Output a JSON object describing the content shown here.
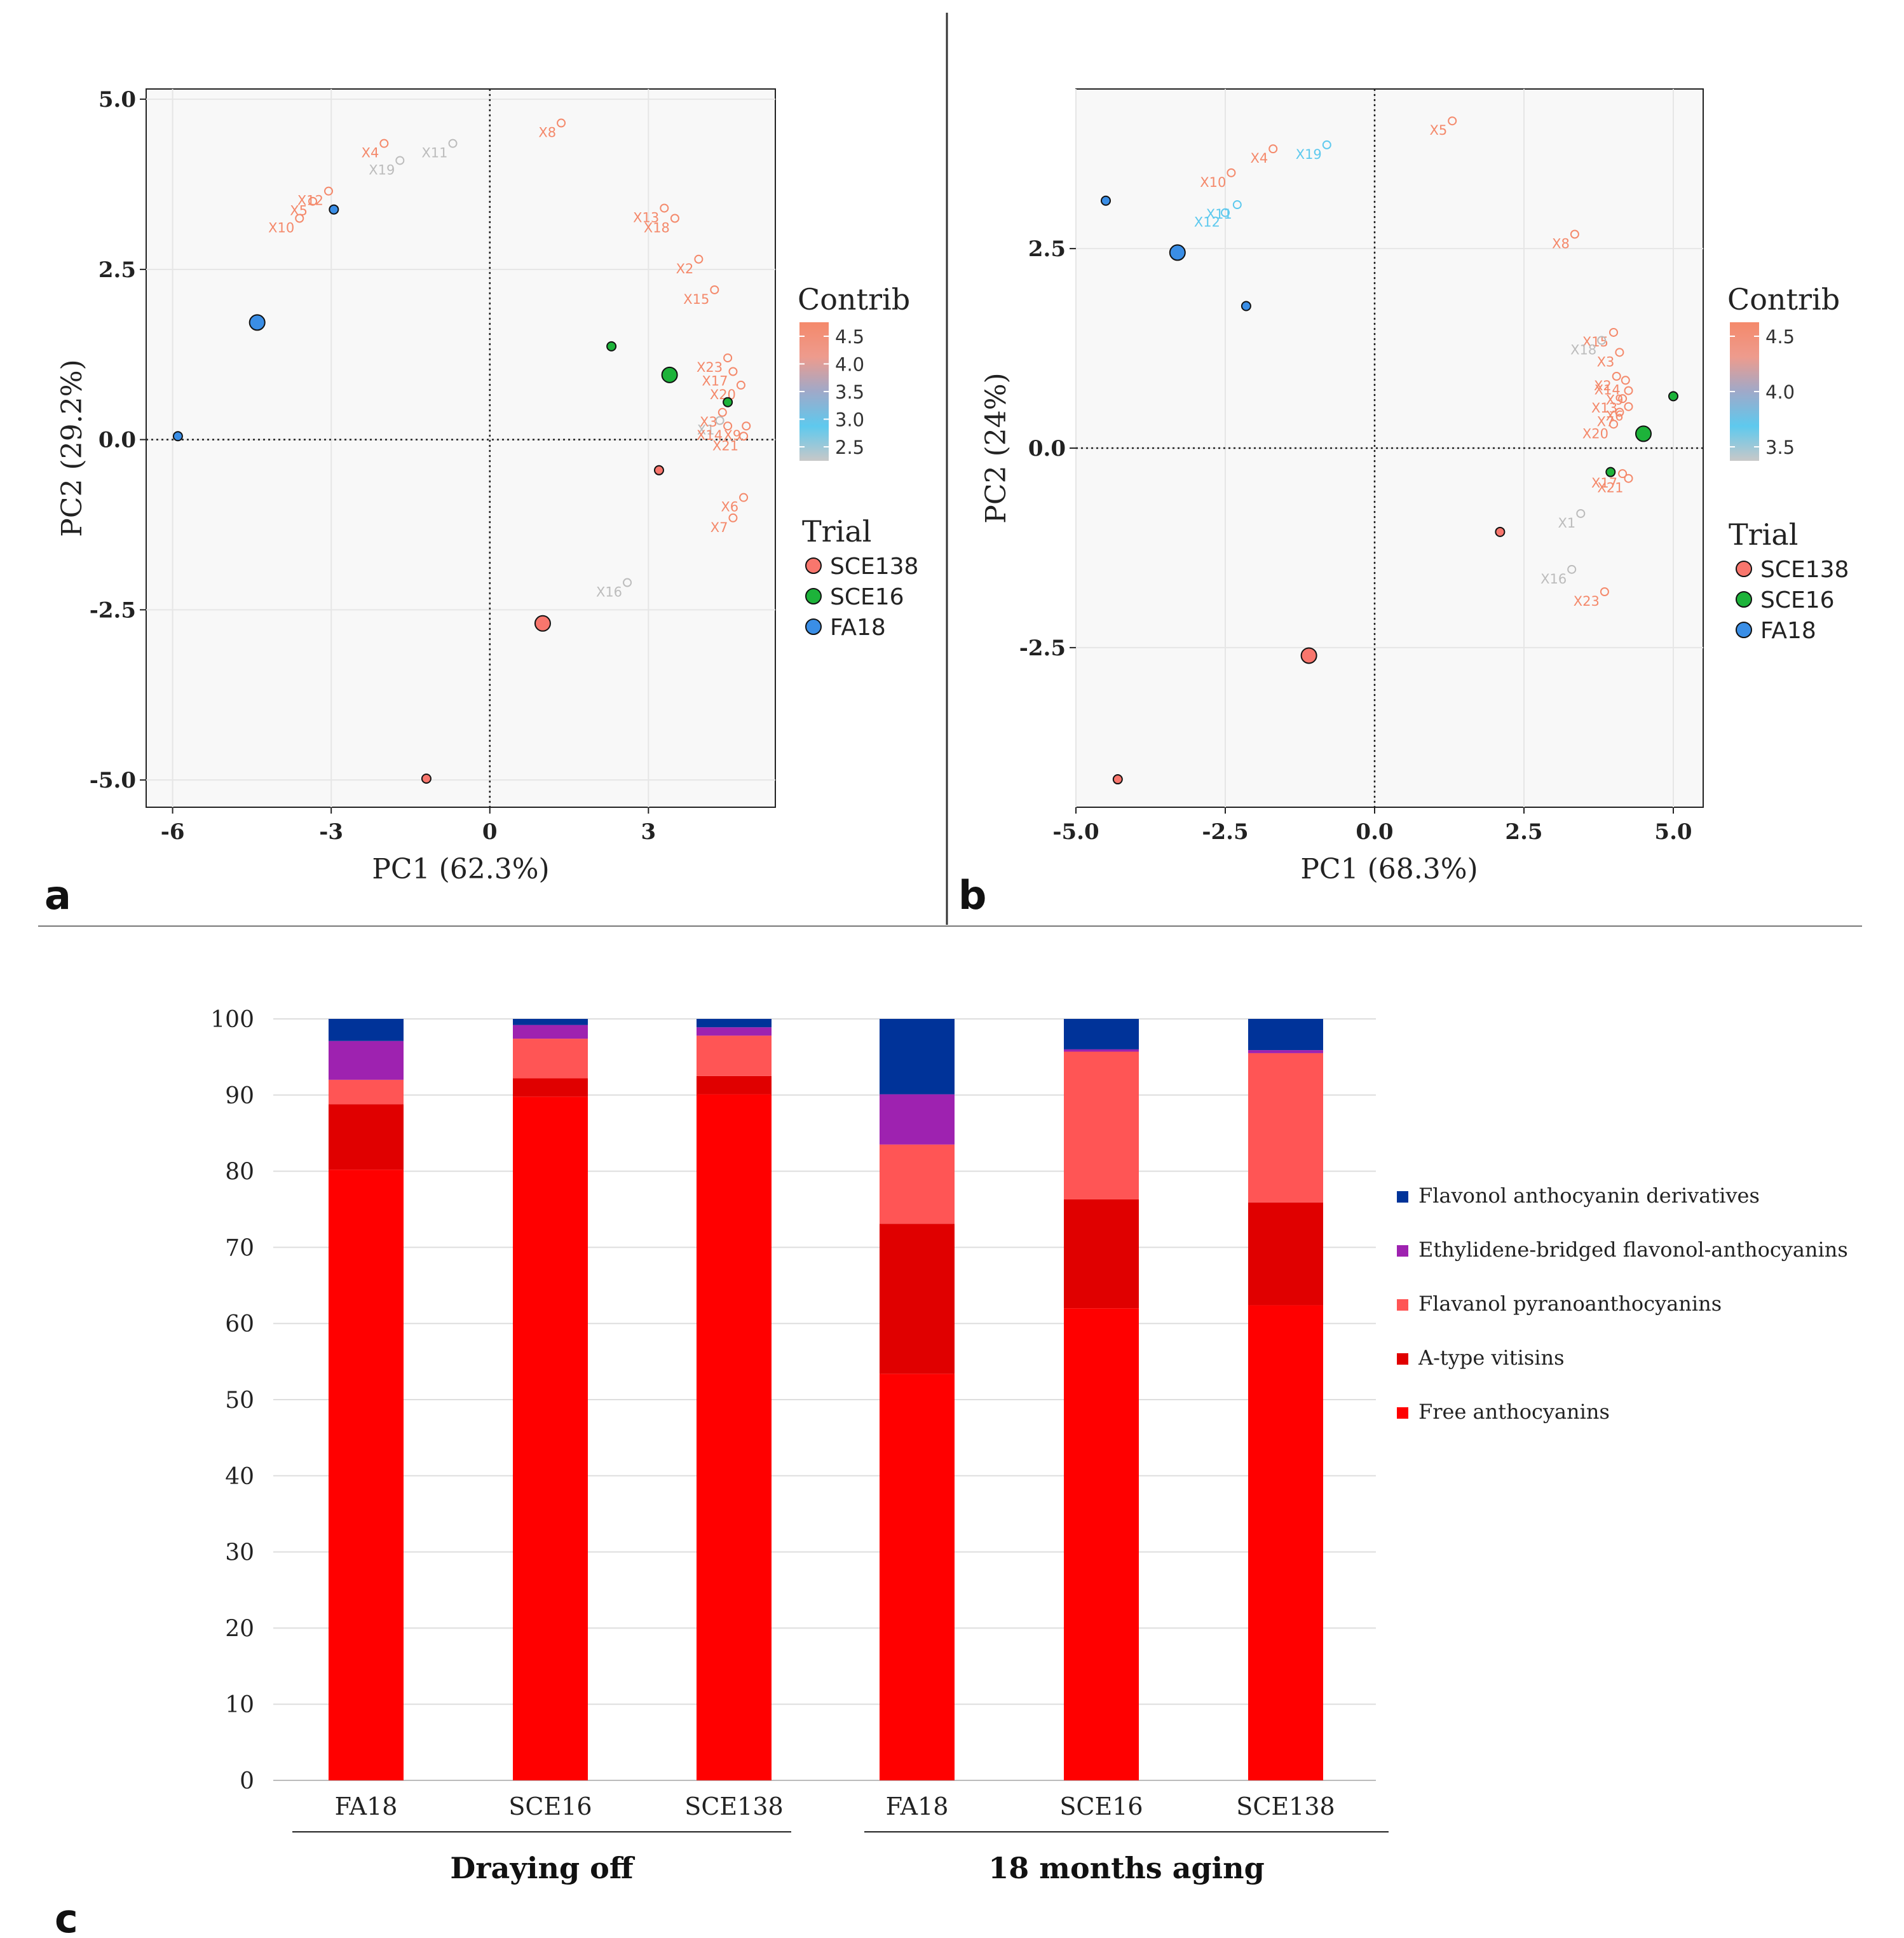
{
  "panels": {
    "a_label": "a",
    "b_label": "b",
    "c_label": "c"
  },
  "chart_data": [
    {
      "type": "scatter",
      "panel": "a",
      "xlabel": "PC1 (62.3%)",
      "ylabel": "PC2 (29.2%)",
      "xlim": [
        -6.5,
        5.4
      ],
      "ylim": [
        -5.4,
        5.15
      ],
      "xticks": [
        -6,
        -3,
        0,
        3
      ],
      "xtick_labels": [
        "-6",
        "-3",
        "0",
        "3"
      ],
      "yticks": [
        5,
        2.5,
        0,
        -2.5,
        -5
      ],
      "ytick_labels": [
        "5.0",
        "2.5",
        "0.0",
        "-2.5",
        "-5.0"
      ],
      "contrib_legend": {
        "title": "Contrib",
        "ticks": [
          "4.5",
          "4.0",
          "3.5",
          "3.0",
          "2.5"
        ],
        "colors": [
          "#f4896b",
          "#ee9b8d",
          "#9fa9c9",
          "#5ec9ee",
          "#c8c8c8"
        ]
      },
      "trial_legend": {
        "title": "Trial",
        "entries": [
          {
            "name": "SCE138",
            "color": "#f8766d"
          },
          {
            "name": "SCE16",
            "color": "#1db33a"
          },
          {
            "name": "FA18",
            "color": "#3a8ee6"
          }
        ]
      },
      "variables": [
        {
          "label": "X4",
          "x": -2.0,
          "y": 4.35,
          "c": "orange"
        },
        {
          "label": "X11",
          "x": -0.7,
          "y": 4.35,
          "c": "grey"
        },
        {
          "label": "X19",
          "x": -1.7,
          "y": 4.1,
          "c": "grey"
        },
        {
          "label": "X8",
          "x": 1.35,
          "y": 4.65,
          "c": "orange"
        },
        {
          "label": "X12",
          "x": -3.05,
          "y": 3.65,
          "c": "orange"
        },
        {
          "label": "X5",
          "x": -3.35,
          "y": 3.5,
          "c": "orange"
        },
        {
          "label": "X10",
          "x": -3.6,
          "y": 3.25,
          "c": "orange"
        },
        {
          "label": "X13",
          "x": 3.3,
          "y": 3.4,
          "c": "orange"
        },
        {
          "label": "X18",
          "x": 3.5,
          "y": 3.25,
          "c": "orange"
        },
        {
          "label": "X2",
          "x": 3.95,
          "y": 2.65,
          "c": "orange"
        },
        {
          "label": "X15",
          "x": 4.25,
          "y": 2.2,
          "c": "orange"
        },
        {
          "label": "X23",
          "x": 4.5,
          "y": 1.2,
          "c": "orange"
        },
        {
          "label": "X17",
          "x": 4.6,
          "y": 1.0,
          "c": "orange"
        },
        {
          "label": "X20",
          "x": 4.75,
          "y": 0.8,
          "c": "orange"
        },
        {
          "label": "X9",
          "x": 4.85,
          "y": 0.2,
          "c": "orange"
        },
        {
          "label": "X1",
          "x": 4.35,
          "y": 0.28,
          "c": "grey"
        },
        {
          "label": "X3",
          "x": 4.4,
          "y": 0.4,
          "c": "orange"
        },
        {
          "label": "X14",
          "x": 4.5,
          "y": 0.2,
          "c": "orange"
        },
        {
          "label": "X21",
          "x": 4.8,
          "y": 0.05,
          "c": "orange"
        },
        {
          "label": "X6",
          "x": 4.8,
          "y": -0.85,
          "c": "orange"
        },
        {
          "label": "X7",
          "x": 4.6,
          "y": -1.15,
          "c": "orange"
        },
        {
          "label": "X16",
          "x": 2.6,
          "y": -2.1,
          "c": "grey"
        }
      ],
      "individuals": [
        {
          "trial": "FA18",
          "x": -5.9,
          "y": 0.05,
          "mean": false
        },
        {
          "trial": "FA18",
          "x": -4.4,
          "y": 1.72,
          "mean": true
        },
        {
          "trial": "FA18",
          "x": -2.95,
          "y": 3.38,
          "mean": false
        },
        {
          "trial": "SCE16",
          "x": 2.3,
          "y": 1.37,
          "mean": false
        },
        {
          "trial": "SCE16",
          "x": 3.4,
          "y": 0.95,
          "mean": true
        },
        {
          "trial": "SCE16",
          "x": 4.5,
          "y": 0.55,
          "mean": false
        },
        {
          "trial": "SCE138",
          "x": 3.2,
          "y": -0.45,
          "mean": false
        },
        {
          "trial": "SCE138",
          "x": 1.0,
          "y": -2.7,
          "mean": true
        },
        {
          "trial": "SCE138",
          "x": -1.2,
          "y": -4.98,
          "mean": false
        }
      ]
    },
    {
      "type": "scatter",
      "panel": "b",
      "xlabel": "PC1 (68.3%)",
      "ylabel": "PC2 (24%)",
      "xlim": [
        -5.0,
        5.5
      ],
      "ylim": [
        -4.5,
        4.5
      ],
      "xticks": [
        -5,
        -2.5,
        0,
        2.5,
        5
      ],
      "xtick_labels": [
        "-5.0",
        "-2.5",
        "0.0",
        "2.5",
        "5.0"
      ],
      "yticks": [
        2.5,
        0,
        -2.5
      ],
      "ytick_labels": [
        "2.5",
        "0.0",
        "-2.5"
      ],
      "contrib_legend": {
        "title": "Contrib",
        "ticks": [
          "4.5",
          "4.0",
          "3.5"
        ],
        "colors": [
          "#f4896b",
          "#ee9b8d",
          "#9fa9c9",
          "#5ec9ee",
          "#c8c8c8"
        ]
      },
      "trial_legend": {
        "title": "Trial",
        "entries": [
          {
            "name": "SCE138",
            "color": "#f8766d"
          },
          {
            "name": "SCE16",
            "color": "#1db33a"
          },
          {
            "name": "FA18",
            "color": "#3a8ee6"
          }
        ]
      },
      "variables": [
        {
          "label": "X4",
          "x": -1.7,
          "y": 3.75,
          "c": "orange"
        },
        {
          "label": "X5",
          "x": 1.3,
          "y": 4.1,
          "c": "orange"
        },
        {
          "label": "X10",
          "x": -2.4,
          "y": 3.45,
          "c": "orange"
        },
        {
          "label": "X19",
          "x": -0.8,
          "y": 3.8,
          "c": "blue"
        },
        {
          "label": "X11",
          "x": -2.3,
          "y": 3.05,
          "c": "blue"
        },
        {
          "label": "X12",
          "x": -2.5,
          "y": 2.95,
          "c": "blue"
        },
        {
          "label": "X8",
          "x": 3.35,
          "y": 2.68,
          "c": "orange"
        },
        {
          "label": "X15",
          "x": 4.0,
          "y": 1.45,
          "c": "orange"
        },
        {
          "label": "X18",
          "x": 3.8,
          "y": 1.35,
          "c": "grey"
        },
        {
          "label": "X3",
          "x": 4.1,
          "y": 1.2,
          "c": "orange"
        },
        {
          "label": "X2",
          "x": 4.05,
          "y": 0.9,
          "c": "orange"
        },
        {
          "label": "X14",
          "x": 4.2,
          "y": 0.85,
          "c": "orange"
        },
        {
          "label": "X9",
          "x": 4.25,
          "y": 0.72,
          "c": "orange"
        },
        {
          "label": "X13",
          "x": 4.15,
          "y": 0.62,
          "c": "orange"
        },
        {
          "label": "X6",
          "x": 4.25,
          "y": 0.52,
          "c": "orange"
        },
        {
          "label": "X7",
          "x": 4.1,
          "y": 0.45,
          "c": "orange"
        },
        {
          "label": "X20",
          "x": 4.0,
          "y": 0.3,
          "c": "orange"
        },
        {
          "label": "X17",
          "x": 4.15,
          "y": -0.32,
          "c": "orange"
        },
        {
          "label": "X21",
          "x": 4.25,
          "y": -0.38,
          "c": "orange"
        },
        {
          "label": "X1",
          "x": 3.45,
          "y": -0.82,
          "c": "grey"
        },
        {
          "label": "X16",
          "x": 3.3,
          "y": -1.52,
          "c": "grey"
        },
        {
          "label": "X23",
          "x": 3.85,
          "y": -1.8,
          "c": "orange"
        }
      ],
      "individuals": [
        {
          "trial": "FA18",
          "x": -4.5,
          "y": 3.1,
          "mean": false
        },
        {
          "trial": "FA18",
          "x": -3.3,
          "y": 2.45,
          "mean": true
        },
        {
          "trial": "FA18",
          "x": -2.15,
          "y": 1.78,
          "mean": false
        },
        {
          "trial": "SCE16",
          "x": 5.0,
          "y": 0.65,
          "mean": false
        },
        {
          "trial": "SCE16",
          "x": 4.5,
          "y": 0.18,
          "mean": true
        },
        {
          "trial": "SCE16",
          "x": 3.95,
          "y": -0.3,
          "mean": false
        },
        {
          "trial": "SCE138",
          "x": 2.1,
          "y": -1.05,
          "mean": false
        },
        {
          "trial": "SCE138",
          "x": -1.1,
          "y": -2.6,
          "mean": true
        },
        {
          "trial": "SCE138",
          "x": -4.3,
          "y": -4.15,
          "mean": false
        }
      ]
    },
    {
      "type": "bar",
      "panel": "c",
      "stacked": true,
      "categories": [
        "FA18",
        "SCE16",
        "SCE138",
        "FA18",
        "SCE16",
        "SCE138"
      ],
      "groups": [
        {
          "label": "Draying off",
          "categories": [
            0,
            1,
            2
          ]
        },
        {
          "label": "18 months aging",
          "categories": [
            3,
            4,
            5
          ]
        }
      ],
      "ylim": [
        0,
        100
      ],
      "yticks": [
        "0",
        "10",
        "20",
        "30",
        "40",
        "50",
        "60",
        "70",
        "80",
        "90",
        "100"
      ],
      "series": [
        {
          "name": "Free anthocyanins",
          "color": "#ff0000",
          "values": [
            80.2,
            89.8,
            90.1,
            53.4,
            62.0,
            62.4
          ]
        },
        {
          "name": "A-type vitisins",
          "color": "#e00000",
          "values": [
            8.6,
            2.4,
            2.4,
            19.7,
            14.3,
            13.5
          ]
        },
        {
          "name": "Flavanol pyranoanthocyanins",
          "color": "#ff5555",
          "values": [
            3.2,
            5.2,
            5.3,
            10.4,
            19.4,
            19.6
          ]
        },
        {
          "name": "Ethylidene-bridged flavonol-anthocyanins",
          "color": "#9e22b0",
          "values": [
            5.1,
            1.8,
            1.1,
            6.6,
            0.3,
            0.4
          ]
        },
        {
          "name": "Flavonol anthocyanin derivatives",
          "color": "#003399",
          "values": [
            2.9,
            0.8,
            1.1,
            9.9,
            4.0,
            4.1
          ]
        }
      ],
      "legend_order": [
        "Flavonol anthocyanin derivatives",
        "Ethylidene-bridged flavonol-anthocyanins",
        "Flavanol pyranoanthocyanins",
        "A-type vitisins",
        "Free anthocyanins"
      ]
    }
  ]
}
